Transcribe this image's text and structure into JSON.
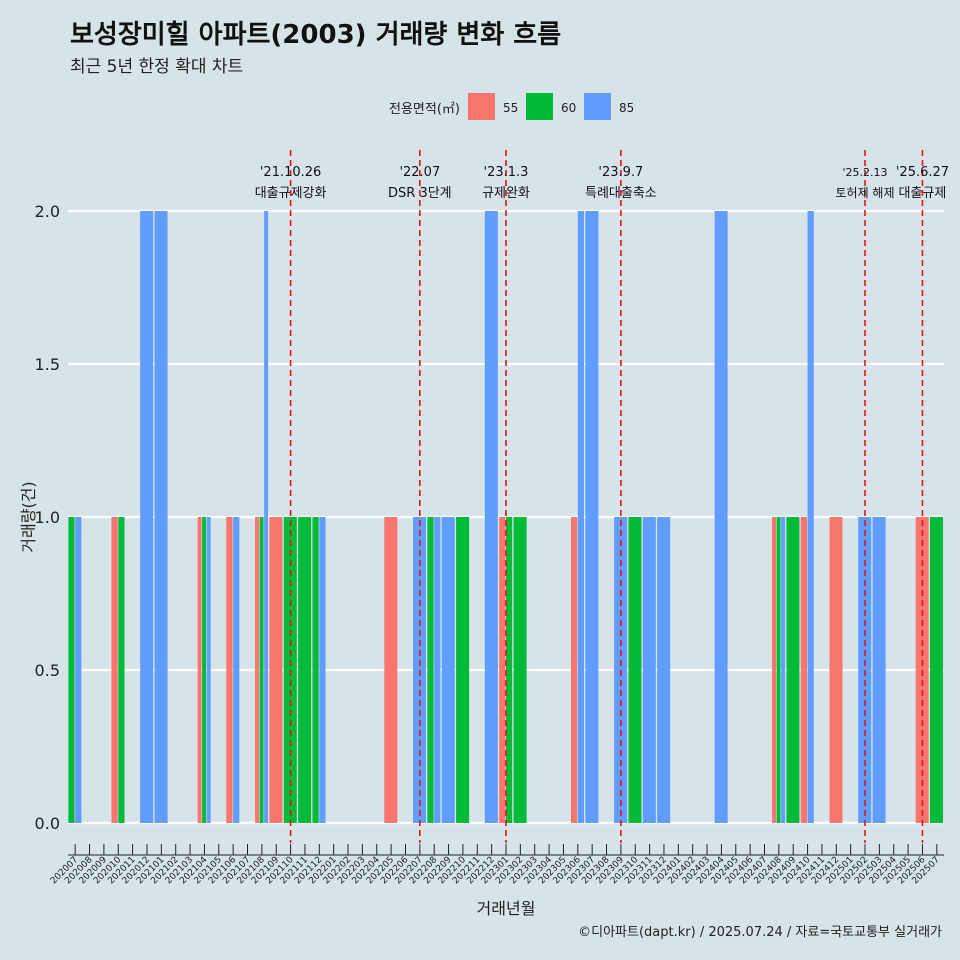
{
  "title": "보성장미힐 아파트(2003) 거래량 변화 흐름",
  "subtitle": "최근 5년 한정 확대 차트",
  "caption": "©디아파트(dapt.kr) / 2025.07.24 / 자료=국토교통부 실거래가",
  "chart_data": {
    "type": "bar",
    "xlabel": "거래년월",
    "ylabel": "거래량(건)",
    "ylim": [
      0,
      2
    ],
    "yticks": [
      0.0,
      0.5,
      1.0,
      1.5,
      2.0
    ],
    "grid": true,
    "legend": {
      "title": "전용면적(㎡)",
      "position": "top"
    },
    "categories": [
      "202007",
      "202008",
      "202009",
      "202010",
      "202011",
      "202012",
      "202101",
      "202102",
      "202103",
      "202104",
      "202105",
      "202106",
      "202107",
      "202108",
      "202109",
      "202110",
      "202111",
      "202112",
      "202201",
      "202202",
      "202203",
      "202204",
      "202205",
      "202206",
      "202207",
      "202208",
      "202209",
      "202210",
      "202211",
      "202212",
      "202301",
      "202302",
      "202303",
      "202304",
      "202305",
      "202306",
      "202307",
      "202308",
      "202309",
      "202310",
      "202311",
      "202312",
      "202401",
      "202402",
      "202403",
      "202404",
      "202405",
      "202406",
      "202407",
      "202408",
      "202409",
      "202410",
      "202411",
      "202412",
      "202501",
      "202502",
      "202503",
      "202504",
      "202505",
      "202506",
      "202507"
    ],
    "series": [
      {
        "name": "55",
        "color": "#f8766d",
        "values": [
          0,
          0,
          0,
          1,
          0,
          0,
          0,
          0,
          0,
          1,
          0,
          1,
          0,
          1,
          1,
          0,
          0,
          0,
          0,
          0,
          0,
          0,
          1,
          0,
          0,
          0,
          0,
          0,
          0,
          0,
          1,
          0,
          0,
          0,
          0,
          1,
          0,
          0,
          0,
          0,
          0,
          0,
          0,
          0,
          0,
          0,
          0,
          0,
          0,
          1,
          0,
          1,
          0,
          1,
          0,
          0,
          0,
          0,
          0,
          1,
          0
        ]
      },
      {
        "name": "60",
        "color": "#00ba38",
        "values": [
          1,
          0,
          0,
          1,
          0,
          0,
          0,
          0,
          0,
          1,
          0,
          0,
          0,
          1,
          0,
          1,
          1,
          1,
          0,
          0,
          0,
          0,
          0,
          0,
          0,
          1,
          0,
          1,
          0,
          0,
          1,
          1,
          0,
          0,
          0,
          0,
          0,
          0,
          0,
          1,
          0,
          0,
          0,
          0,
          0,
          0,
          0,
          0,
          0,
          1,
          1,
          0,
          0,
          0,
          0,
          0,
          0,
          0,
          0,
          0,
          1
        ]
      },
      {
        "name": "85",
        "color": "#619cff",
        "values": [
          1,
          0,
          0,
          0,
          0,
          2,
          2,
          0,
          0,
          1,
          0,
          1,
          0,
          2,
          0,
          0,
          0,
          1,
          0,
          0,
          0,
          0,
          0,
          0,
          1,
          1,
          1,
          0,
          0,
          2,
          0,
          0,
          0,
          0,
          0,
          2,
          2,
          0,
          1,
          0,
          1,
          1,
          0,
          0,
          0,
          2,
          0,
          0,
          0,
          1,
          0,
          2,
          0,
          0,
          0,
          1,
          1,
          0,
          0,
          0,
          0
        ]
      }
    ],
    "events": [
      {
        "date": "'21.10.26",
        "label": "대출규제강화",
        "month": "202110"
      },
      {
        "date": "'22.07",
        "label": "DSR 3단계",
        "month": "202207"
      },
      {
        "date": "'23.1.3",
        "label": "규제완화",
        "month": "202301"
      },
      {
        "date": "'23.9.7",
        "label": "특례대출축소",
        "month": "202309"
      },
      {
        "date": "'25.2.13",
        "label": "토허제 해제",
        "month": "202502"
      },
      {
        "date": "'25.6.27",
        "label": "대출규제",
        "month": "202506"
      }
    ]
  }
}
